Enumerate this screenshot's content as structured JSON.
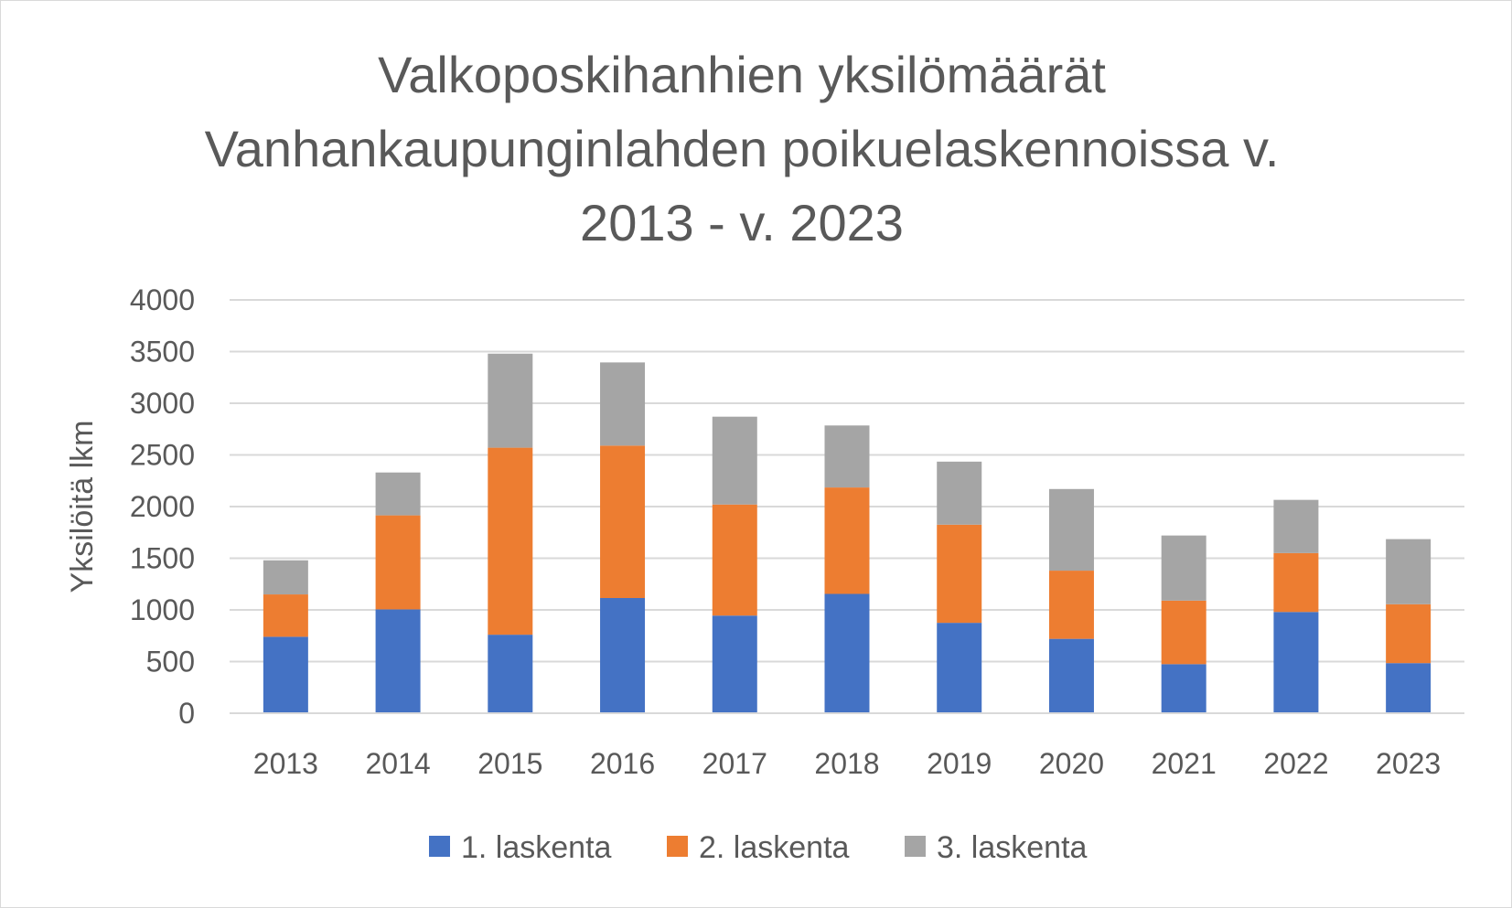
{
  "chart_data": {
    "type": "bar",
    "stacked": true,
    "title_lines": [
      "Valkoposkihanhien yksilömäärät",
      "Vanhankaupunginlahden poikuelaskennoissa v.",
      "2013 - v. 2023"
    ],
    "xlabel": "",
    "ylabel": "Yksilöitä lkm",
    "ylim": [
      0,
      4000
    ],
    "yticks": [
      0,
      500,
      1000,
      1500,
      2000,
      2500,
      3000,
      3500,
      4000
    ],
    "ytick_labels": [
      "0",
      "500",
      "1000",
      "1500",
      "2000",
      "2500",
      "3000",
      "3500",
      "4000"
    ],
    "grid": true,
    "legend_position": "bottom",
    "categories": [
      "2013",
      "2014",
      "2015",
      "2016",
      "2017",
      "2018",
      "2019",
      "2020",
      "2021",
      "2022",
      "2023"
    ],
    "series": [
      {
        "name": "1. laskenta",
        "color": "#4472c4",
        "values": [
          740,
          1005,
          760,
          1115,
          945,
          1155,
          875,
          720,
          475,
          980,
          485
        ]
      },
      {
        "name": "2. laskenta",
        "color": "#ed7d31",
        "values": [
          410,
          910,
          1810,
          1475,
          1075,
          1030,
          950,
          660,
          615,
          570,
          570
        ]
      },
      {
        "name": "3. laskenta",
        "color": "#a5a5a5",
        "values": [
          330,
          415,
          910,
          805,
          850,
          600,
          610,
          790,
          630,
          515,
          630
        ]
      }
    ]
  }
}
